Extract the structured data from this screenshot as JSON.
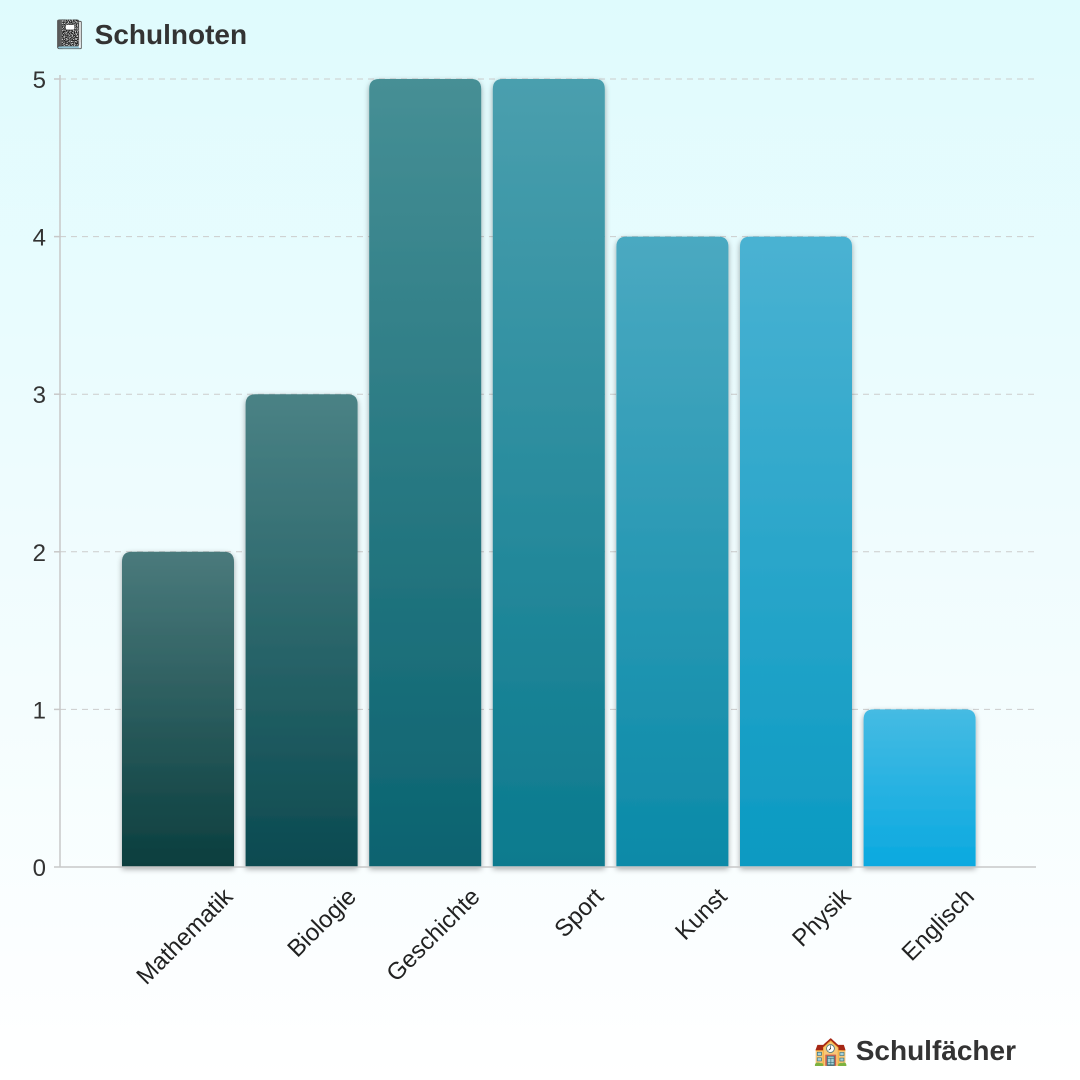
{
  "chart_data": {
    "type": "bar",
    "ylabel": "📓 Schulnoten",
    "xlabel": "🏫 Schulfächer",
    "categories": [
      "Mathematik",
      "Biologie",
      "Geschichte",
      "Sport",
      "Kunst",
      "Physik",
      "Englisch"
    ],
    "values": [
      2,
      3,
      5,
      5,
      4,
      4,
      1
    ],
    "ylim": [
      0,
      5
    ],
    "yticks": [
      "0",
      "1",
      "2",
      "3",
      "4",
      "5"
    ],
    "grid": true,
    "colors": {
      "top": [
        "#4a7a7c",
        "#4a8285",
        "#468f95",
        "#4a9fae",
        "#4aa9c1",
        "#4ab2d2",
        "#45bbe3"
      ],
      "bottom": [
        "#0b3e3e",
        "#0b4a50",
        "#0b6370",
        "#0b7a8e",
        "#0b8aa8",
        "#0b9ac2",
        "#0aa9e0"
      ],
      "axis": "#c8c8c8",
      "grid": "#cccccc"
    }
  }
}
